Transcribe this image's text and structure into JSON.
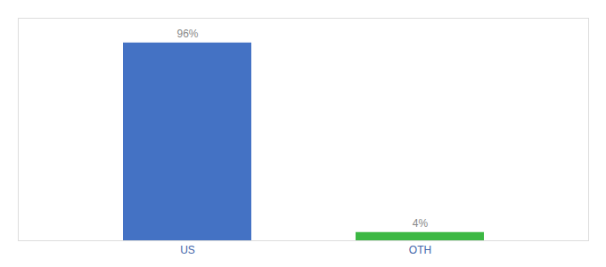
{
  "chart_data": {
    "type": "bar",
    "categories": [
      "US",
      "OTH"
    ],
    "values": [
      96,
      4
    ],
    "value_labels": [
      "96%",
      "4%"
    ],
    "colors": [
      "#4472C4",
      "#3CB843"
    ],
    "ylim": [
      0,
      108
    ],
    "data_labels": true,
    "tick_labels": "x",
    "grid": false
  }
}
